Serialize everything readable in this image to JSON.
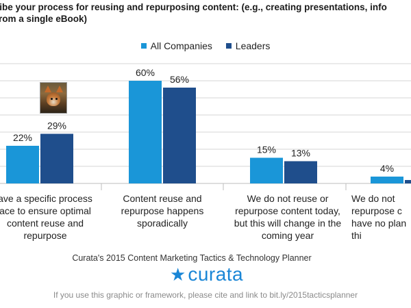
{
  "title": {
    "line1": "ribe your process for reusing and repurposing content: (e.g., creating presentations, info",
    "line2": "rom a single eBook)"
  },
  "legend": {
    "all": "All Companies",
    "leaders": "Leaders"
  },
  "categories": [
    "ave a specific process\nace to ensure optimal\ncontent reuse and\nrepurpose",
    "Content reuse and\nrepurpose happens\nsporadically",
    "We do not reuse or\nrepurpose content today,\nbut this will change in the\ncoming year",
    "We do not\nrepurpose c\nhave no plan\nthi"
  ],
  "chart_data": {
    "type": "bar",
    "title": "",
    "categories": [
      "We have a specific process in place to ensure optimal content reuse and repurpose",
      "Content reuse and repurpose happens sporadically",
      "We do not reuse or repurpose content today, but this will change in the coming year",
      "We do not reuse or repurpose content and have no plans to do this"
    ],
    "series": [
      {
        "name": "All Companies",
        "values": [
          22,
          60,
          15,
          4
        ],
        "labels": [
          "22%",
          "60%",
          "15%",
          "4%"
        ],
        "color": "#1a96d8"
      },
      {
        "name": "Leaders",
        "values": [
          29,
          56,
          13,
          2
        ],
        "labels": [
          "29%",
          "56%",
          "13%",
          ""
        ],
        "color": "#1f4e8c"
      }
    ],
    "ylim": [
      0,
      70
    ],
    "grid": true,
    "xlabel": "",
    "ylabel": ""
  },
  "source": "Curata's 2015 Content Marketing Tactics & Technology Planner",
  "logo": {
    "star": "★",
    "word": "curata"
  },
  "cite": "If you use this graphic or framework, please cite and link to bit.ly/2015tacticsplanner",
  "colors": {
    "grid": "#d6d6d6",
    "axis": "#bdbdbd"
  }
}
